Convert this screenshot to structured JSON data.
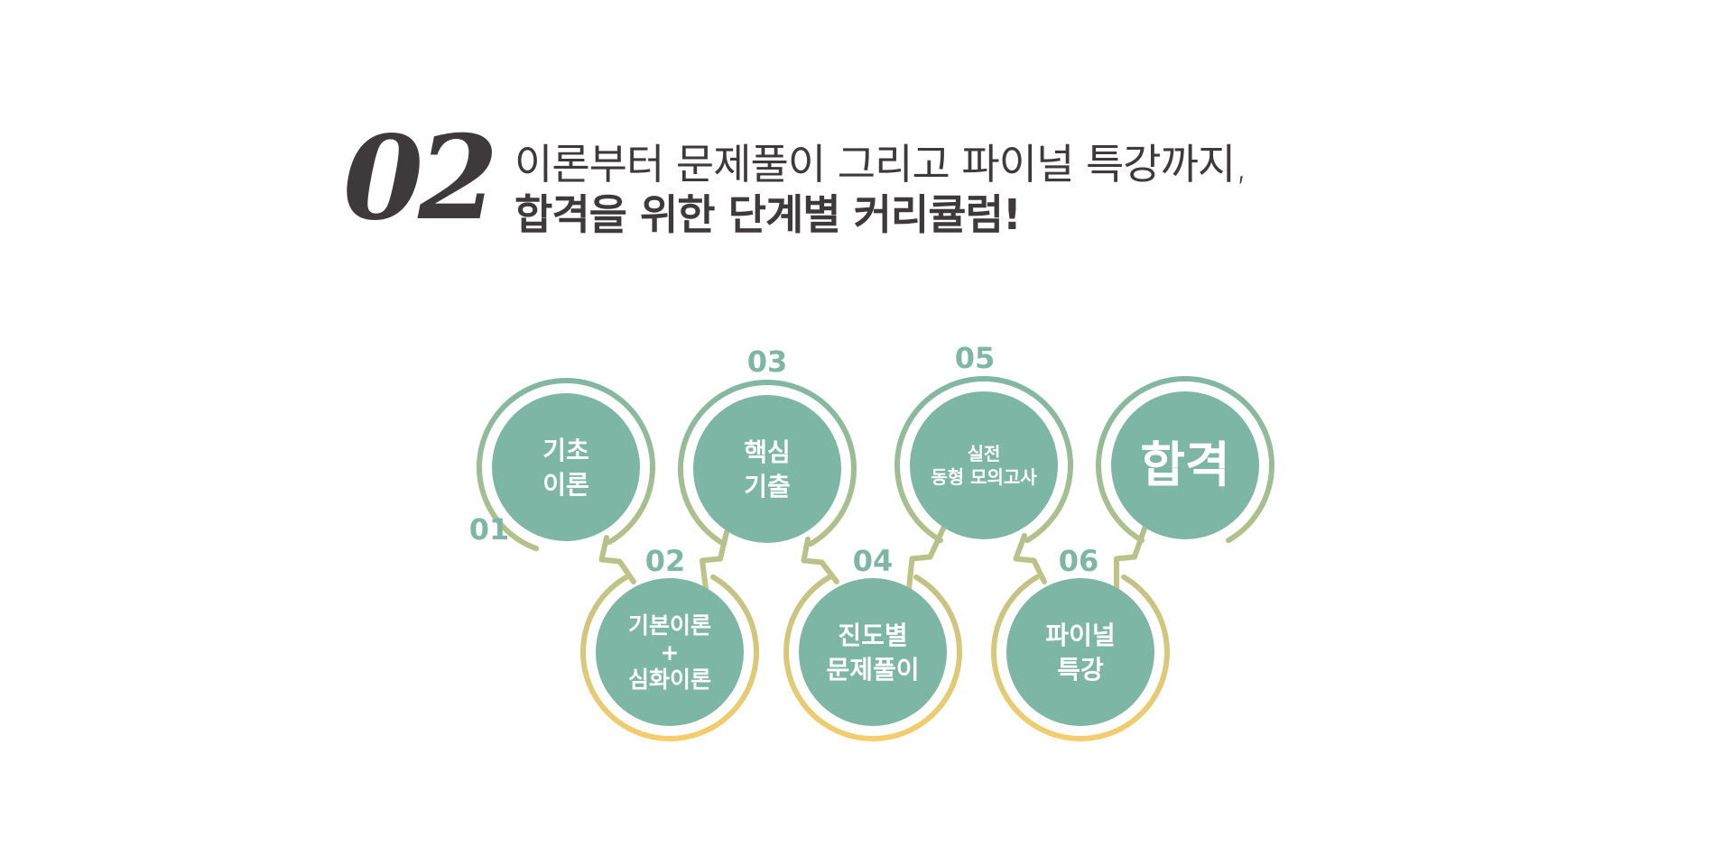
{
  "heading": {
    "number": "02",
    "line1": "이론부터 문제풀이 그리고 파이널 특강까지,",
    "line2": "합격을 위한 단계별 커리큘럼!"
  },
  "colors": {
    "circle_fill": "#7db6a5",
    "ring_top": "#7db6a5",
    "ring_bottom": "#f4cd6d",
    "number": "#7db6a5",
    "text_dark": "#3e3a3b"
  },
  "steps": [
    {
      "number": "01",
      "lines": [
        "기초",
        "이론"
      ]
    },
    {
      "number": "02",
      "lines": [
        "기본이론",
        "+",
        "심화이론"
      ]
    },
    {
      "number": "03",
      "lines": [
        "핵심",
        "기출"
      ]
    },
    {
      "number": "04",
      "lines": [
        "진도별",
        "문제풀이"
      ]
    },
    {
      "number": "05",
      "lines": [
        "실전",
        "동형 모의고사"
      ]
    },
    {
      "number": "06",
      "lines": [
        "파이널",
        "특강"
      ]
    }
  ],
  "goal": {
    "label": "합격"
  }
}
